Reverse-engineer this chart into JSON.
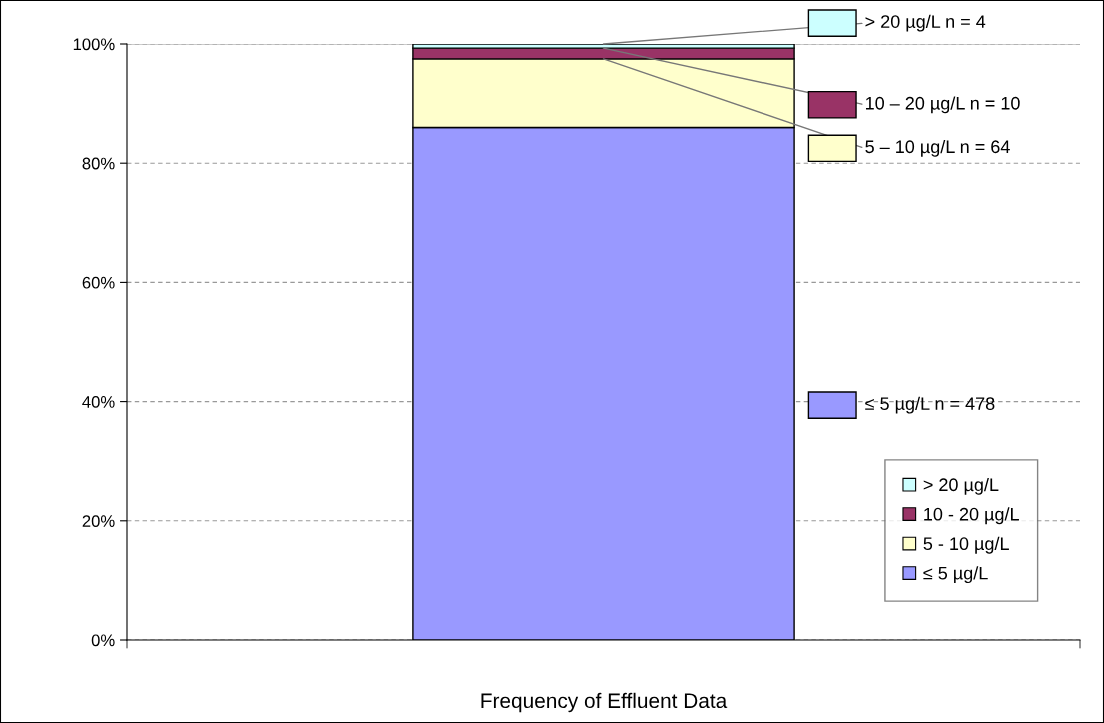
{
  "chart_data": {
    "type": "bar",
    "stacked": true,
    "categories": [
      "Frequency of Effluent Data"
    ],
    "series": [
      {
        "name": "≤ 5 µg/L",
        "color": "#9999ff",
        "values": [
          86
        ]
      },
      {
        "name": "5 - 10 µg/L",
        "color": "#ffffcc",
        "values": [
          11.5
        ]
      },
      {
        "name": "10 - 20 µg/L",
        "color": "#993366",
        "values": [
          1.8
        ]
      },
      {
        "name": "> 20 µg/L",
        "color": "#ccffff",
        "values": [
          0.7
        ]
      }
    ],
    "ylim": [
      0,
      100
    ],
    "yticks": [
      {
        "value": 0,
        "label": "0%"
      },
      {
        "value": 20,
        "label": "20%"
      },
      {
        "value": 40,
        "label": "40%"
      },
      {
        "value": 60,
        "label": "60%"
      },
      {
        "value": 80,
        "label": "80%"
      },
      {
        "value": 100,
        "label": "100%"
      }
    ],
    "grid": "y",
    "legend": "bottom right",
    "annotations": [
      {
        "text": "> 20 µg/L n = 4",
        "x": "Frequency of Effluent Data",
        "y": 100
      },
      {
        "text": "10 – 20 µg/L n = 10",
        "x": "Frequency of Effluent Data",
        "y": 99.3
      },
      {
        "text": "5 – 10 µg/L n = 64",
        "x": "Frequency of Effluent Data",
        "y": 97.5
      },
      "≤ 5 µg/L n = 478"
    ]
  }
}
